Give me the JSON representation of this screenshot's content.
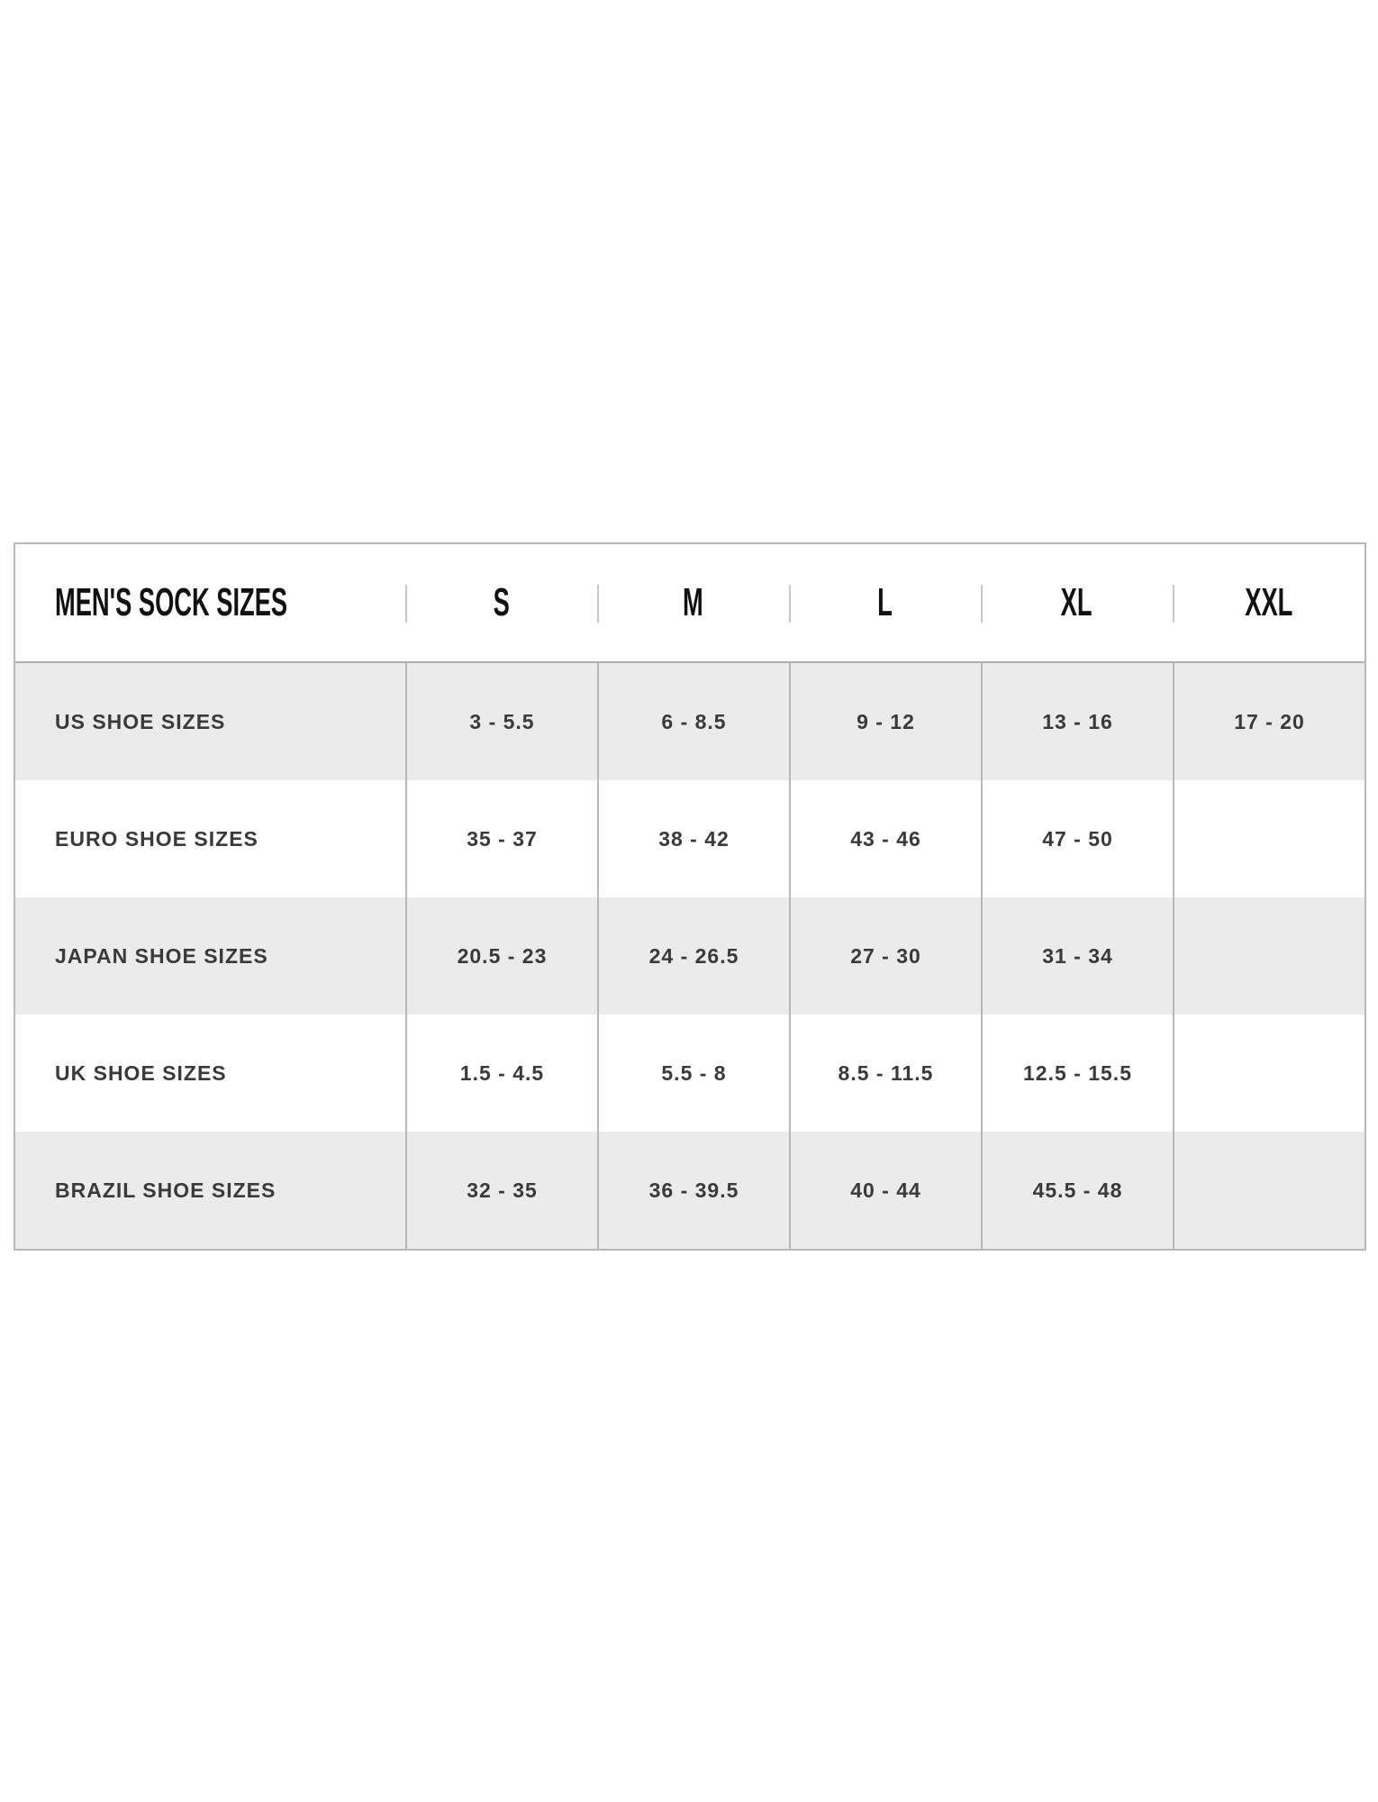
{
  "table": {
    "title": "MEN'S SOCK SIZES",
    "columns": [
      "S",
      "M",
      "L",
      "XL",
      "XXL"
    ],
    "rows": [
      {
        "label": "US SHOE SIZES",
        "values": [
          "3 - 5.5",
          "6 - 8.5",
          "9 - 12",
          "13 - 16",
          "17 - 20"
        ]
      },
      {
        "label": "EURO SHOE SIZES",
        "values": [
          "35 - 37",
          "38 - 42",
          "43 - 46",
          "47 - 50",
          ""
        ]
      },
      {
        "label": "JAPAN SHOE SIZES",
        "values": [
          "20.5 - 23",
          "24 - 26.5",
          "27 - 30",
          "31 - 34",
          ""
        ]
      },
      {
        "label": "UK SHOE SIZES",
        "values": [
          "1.5 - 4.5",
          "5.5 - 8",
          "8.5 - 11.5",
          "12.5 - 15.5",
          ""
        ]
      },
      {
        "label": "BRAZIL SHOE SIZES",
        "values": [
          "32 - 35",
          "36 - 39.5",
          "40 - 44",
          "45.5 - 48",
          ""
        ]
      }
    ]
  },
  "colors": {
    "stripe": "#ebebeb",
    "border": "#b8b8b8",
    "text": "#3a3a3a"
  }
}
